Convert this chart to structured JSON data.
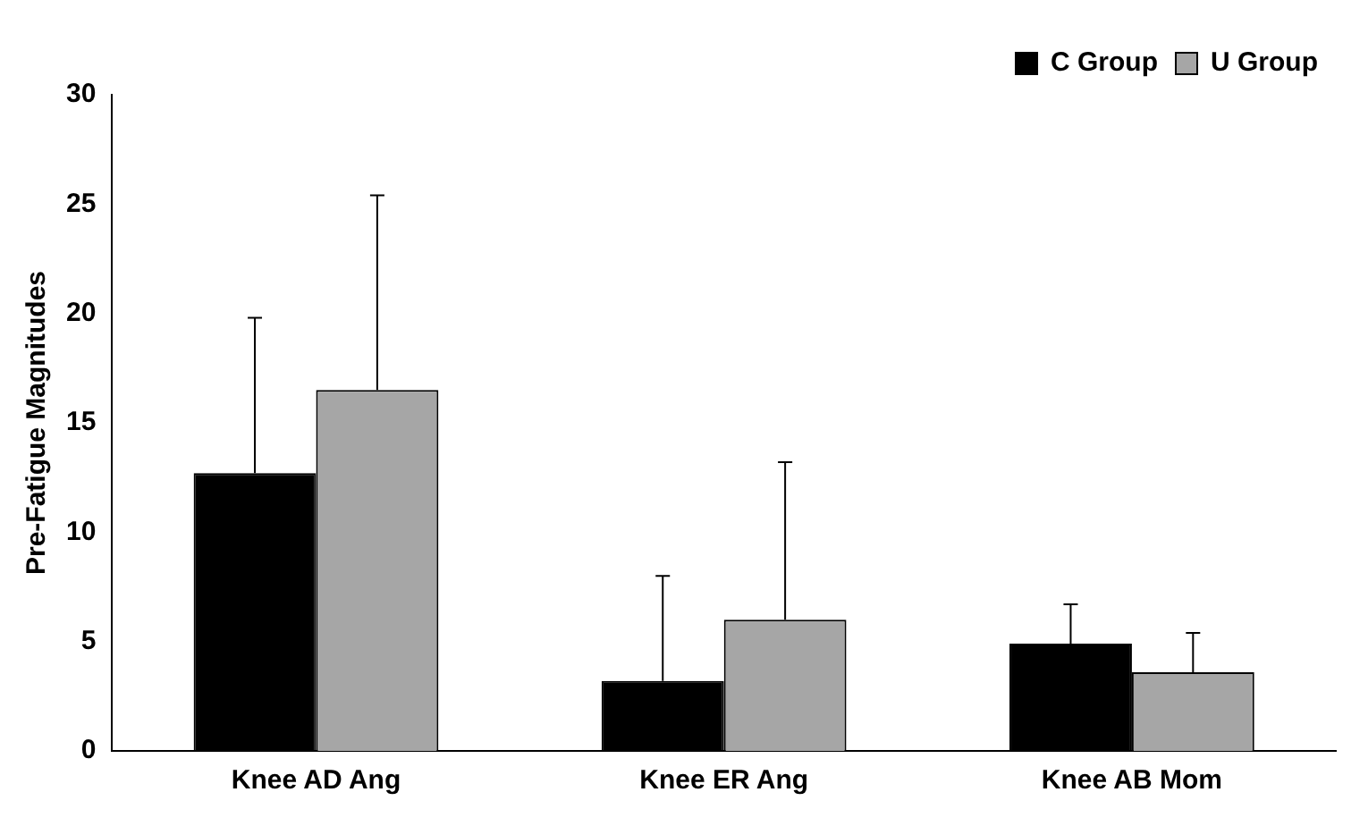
{
  "chart_data": {
    "type": "bar",
    "ylabel": "Pre-Fatigue Magnitudes",
    "categories": [
      "Knee AD Ang",
      "Knee ER Ang",
      "Knee AB Mom"
    ],
    "series": [
      {
        "name": "C Group",
        "color": "#000000",
        "values": [
          12.7,
          3.2,
          4.9
        ],
        "errors": [
          [
            12.7,
            19.8
          ],
          [
            3.2,
            8.0
          ],
          [
            4.9,
            6.7
          ]
        ]
      },
      {
        "name": "U Group",
        "color": "#a6a6a6",
        "values": [
          16.5,
          6.0,
          3.6
        ],
        "errors": [
          [
            16.5,
            25.4
          ],
          [
            6.0,
            13.2
          ],
          [
            3.6,
            5.4
          ]
        ]
      }
    ],
    "ylim": [
      0,
      30
    ],
    "yticks": [
      0,
      5,
      10,
      15,
      20,
      25,
      30
    ],
    "grid": false,
    "legend": "top right"
  }
}
